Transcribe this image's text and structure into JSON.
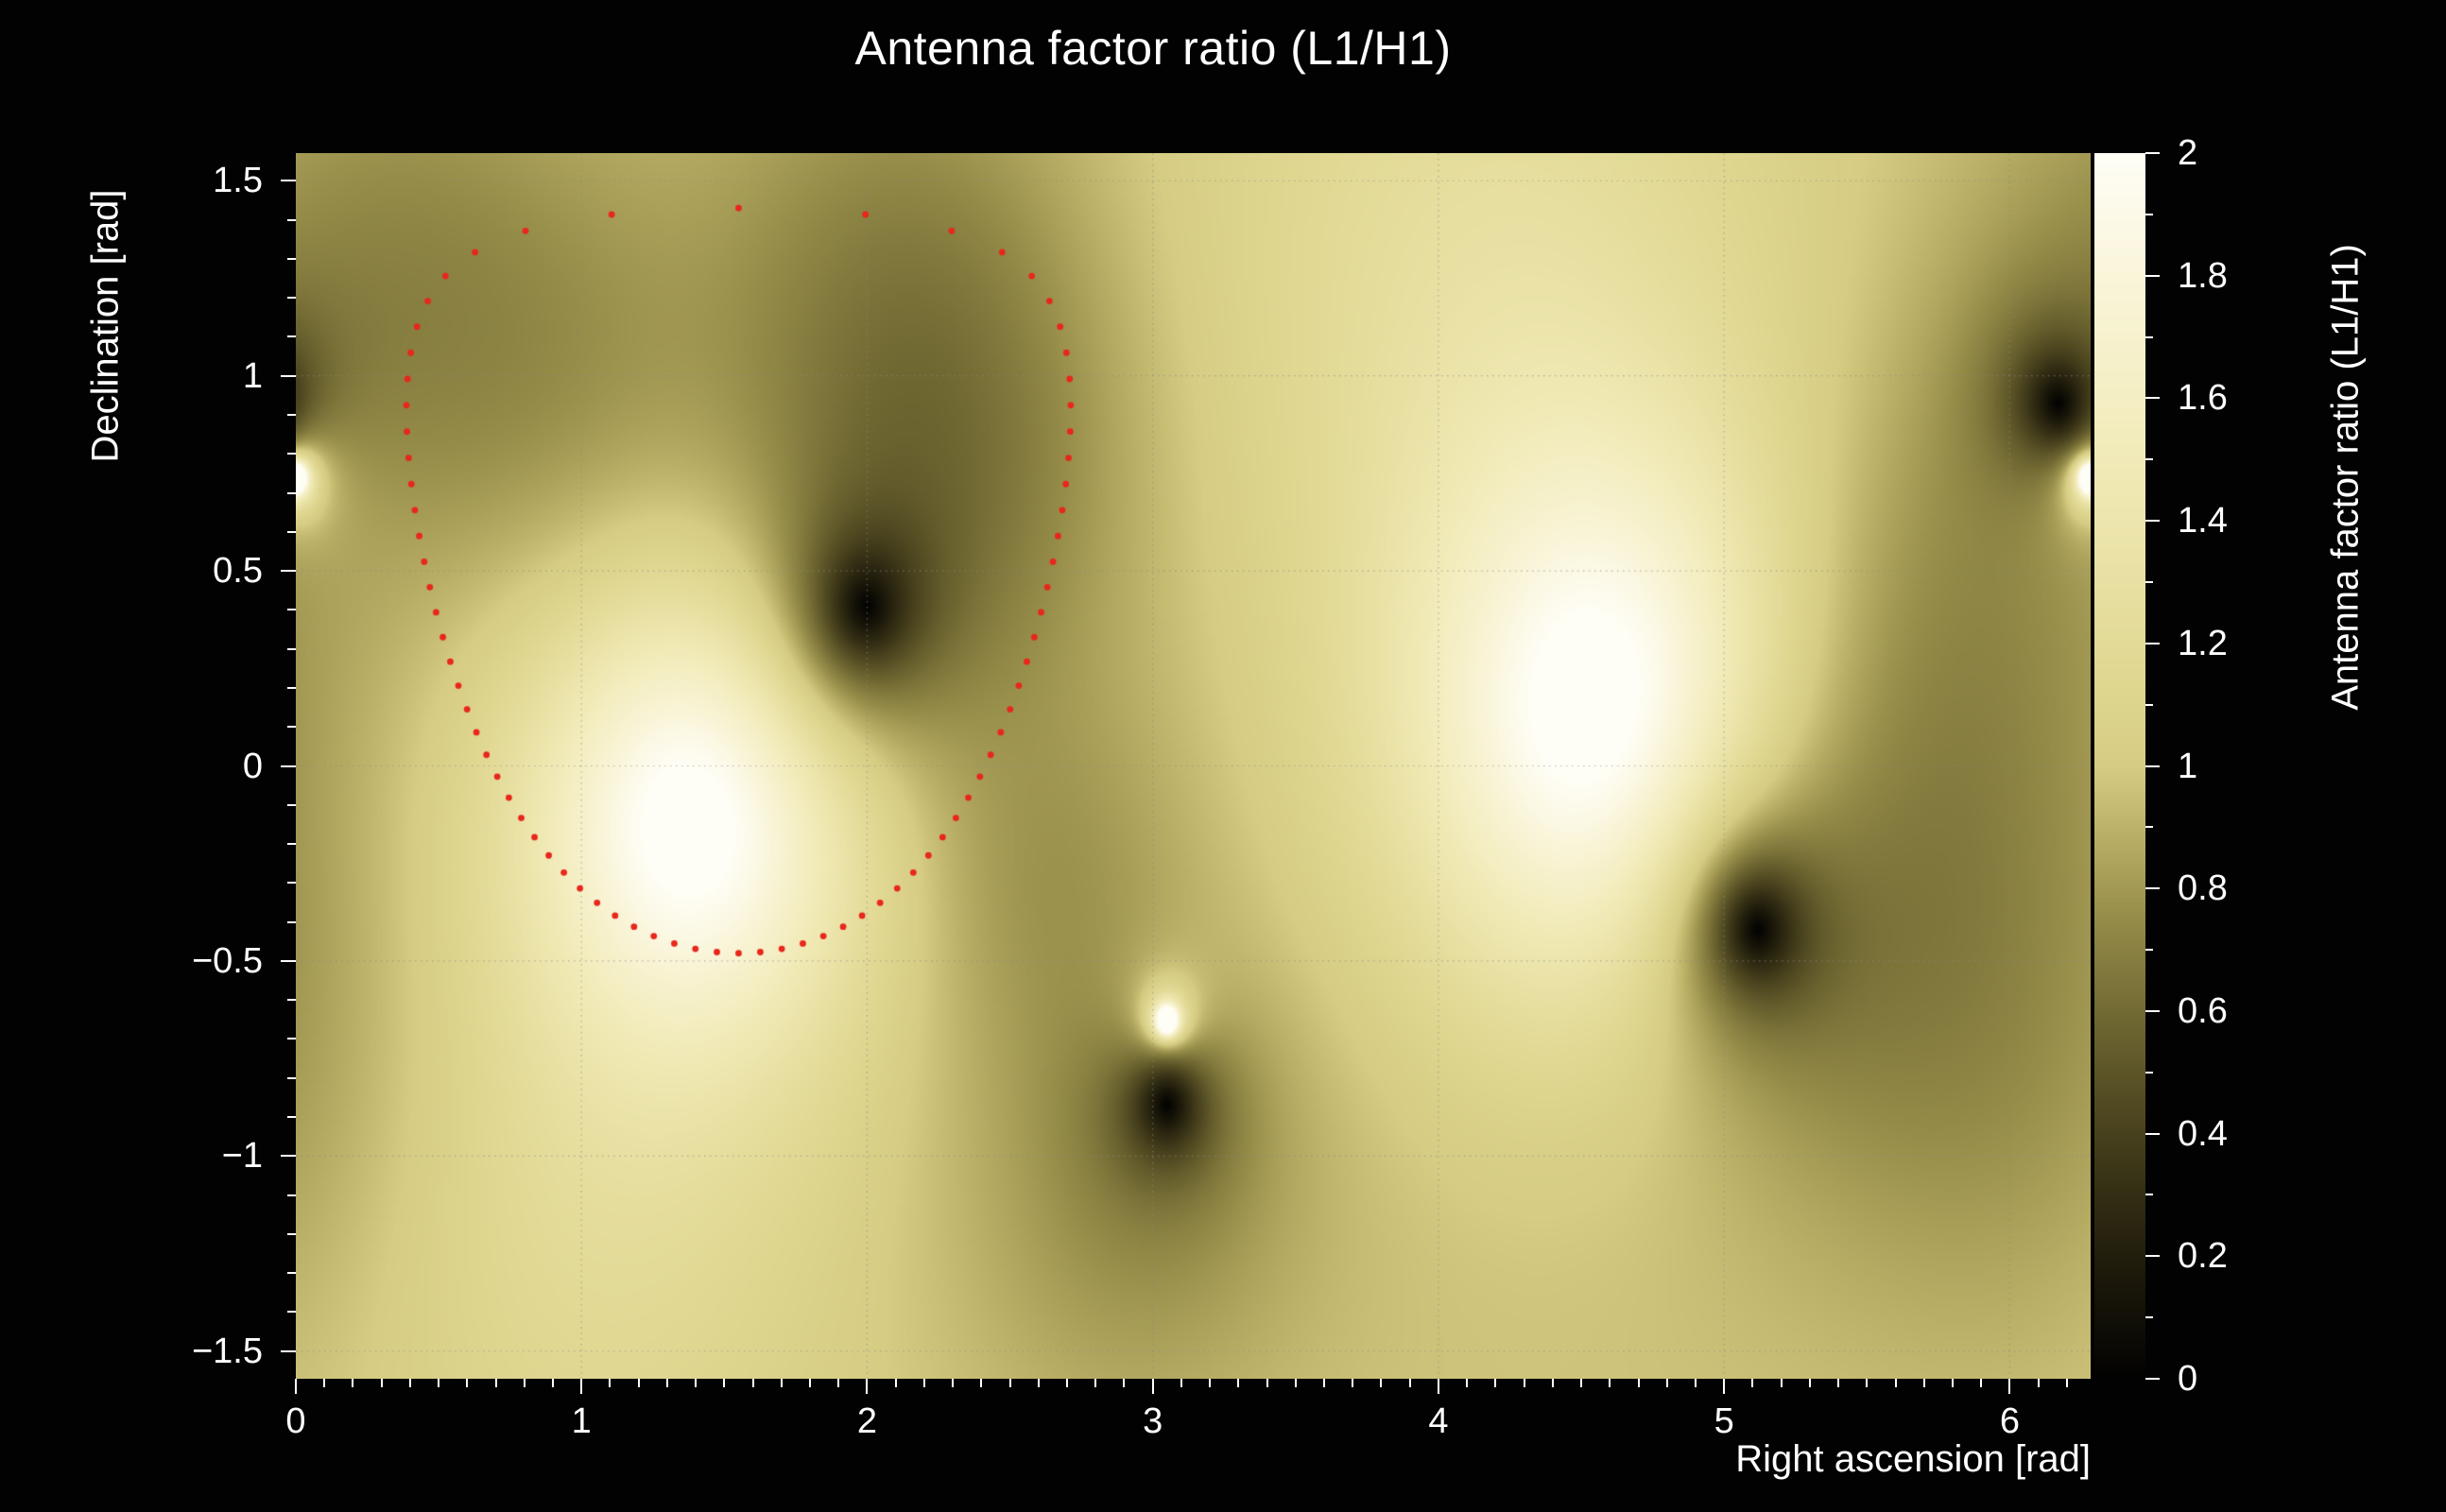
{
  "colors": {
    "background": "#020202",
    "text": "#ffffff",
    "grid": "#8a8a8a",
    "tick": "#ffffff",
    "contour_dots": "#e8271c"
  },
  "chart_data": {
    "type": "heatmap",
    "title": "Antenna factor ratio (L1/H1)",
    "x_axis": {
      "label": "Right ascension [rad]",
      "range": [
        0,
        6.2832
      ],
      "ticks": [
        {
          "v": 0,
          "label": "0"
        },
        {
          "v": 1,
          "label": "1"
        },
        {
          "v": 2,
          "label": "2"
        },
        {
          "v": 3,
          "label": "3"
        },
        {
          "v": 4,
          "label": "4"
        },
        {
          "v": 5,
          "label": "5"
        },
        {
          "v": 6,
          "label": "6"
        }
      ],
      "minor_step": 0.1
    },
    "y_axis": {
      "label": "Declination [rad]",
      "range": [
        -1.5708,
        1.5708
      ],
      "ticks": [
        {
          "v": 1.5,
          "label": "1.5"
        },
        {
          "v": 1.0,
          "label": "1"
        },
        {
          "v": 0.5,
          "label": "0.5"
        },
        {
          "v": 0.0,
          "label": "0"
        },
        {
          "v": -0.5,
          "label": "−0.5"
        },
        {
          "v": -1.0,
          "label": "−1"
        },
        {
          "v": -1.5,
          "label": "−1.5"
        }
      ],
      "minor_step": 0.1
    },
    "colorbar": {
      "label": "Antenna factor ratio (L1/H1)",
      "range": [
        0,
        2
      ],
      "ticks": [
        {
          "v": 2.0,
          "label": "2"
        },
        {
          "v": 1.8,
          "label": "1.8"
        },
        {
          "v": 1.6,
          "label": "1.6"
        },
        {
          "v": 1.4,
          "label": "1.4"
        },
        {
          "v": 1.2,
          "label": "1.2"
        },
        {
          "v": 1.0,
          "label": "1"
        },
        {
          "v": 0.8,
          "label": "0.8"
        },
        {
          "v": 0.6,
          "label": "0.6"
        },
        {
          "v": 0.4,
          "label": "0.4"
        },
        {
          "v": 0.2,
          "label": "0.2"
        },
        {
          "v": 0.0,
          "label": "0"
        }
      ],
      "minor_step": 0.1
    },
    "colormap_stops": [
      [
        0.0,
        "#020202"
      ],
      [
        0.15,
        "#191609"
      ],
      [
        0.3,
        "#332e14"
      ],
      [
        0.45,
        "#514a22"
      ],
      [
        0.6,
        "#726a33"
      ],
      [
        0.75,
        "#958c49"
      ],
      [
        0.9,
        "#bdb269"
      ],
      [
        1.0,
        "#d6cc83"
      ],
      [
        1.15,
        "#e0d792"
      ],
      [
        1.3,
        "#e8e0a2"
      ],
      [
        1.45,
        "#efe8b2"
      ],
      [
        1.6,
        "#f4eec3"
      ],
      [
        1.75,
        "#f8f3d3"
      ],
      [
        1.9,
        "#fcf9e8"
      ],
      [
        2.0,
        "#fffef6"
      ]
    ],
    "field_model": {
      "background_ratio": 1.0,
      "dark_exponent": 0.55,
      "bright_exponent": 0.45,
      "dark_nulls": [
        {
          "ra": 2.0,
          "dec": 0.41,
          "width": 0.3
        },
        {
          "ra": 3.05,
          "dec": -0.87,
          "width": 0.22
        },
        {
          "ra": 5.12,
          "dec": -0.42,
          "width": 0.3
        },
        {
          "ra": 6.17,
          "dec": 0.93,
          "width": 0.24
        }
      ],
      "bright_nulls": [
        {
          "ra": 3.05,
          "dec": -0.655,
          "width": 0.13
        },
        {
          "ra": 6.28,
          "dec": 0.74,
          "width": 0.16
        }
      ],
      "broad_terms": [
        {
          "ra": 1.42,
          "dec": -0.08,
          "amp": 0.8,
          "sigma": 0.48
        },
        {
          "ra": 4.62,
          "dec": 0.05,
          "amp": 0.8,
          "sigma": 0.55
        },
        {
          "ra": 4.2,
          "dec": 1.25,
          "amp": 0.26,
          "sigma": 0.75
        },
        {
          "ra": 1.05,
          "dec": -1.15,
          "amp": 0.2,
          "sigma": 0.6
        },
        {
          "ra": 2.25,
          "dec": 0.8,
          "amp": -0.3,
          "sigma": 0.45
        },
        {
          "ra": 2.1,
          "dec": 1.3,
          "amp": -0.2,
          "sigma": 0.45
        },
        {
          "ra": 0.9,
          "dec": 0.95,
          "amp": -0.2,
          "sigma": 0.45
        },
        {
          "ra": 0.3,
          "dec": 1.3,
          "amp": -0.2,
          "sigma": 0.45
        },
        {
          "ra": 5.55,
          "dec": -0.3,
          "amp": -0.28,
          "sigma": 0.5
        },
        {
          "ra": 5.8,
          "dec": 0.4,
          "amp": -0.2,
          "sigma": 0.45
        },
        {
          "ra": 2.62,
          "dec": -0.3,
          "amp": -0.18,
          "sigma": 0.35
        },
        {
          "ra": 2.9,
          "dec": -1.15,
          "amp": -0.16,
          "sigma": 0.4
        },
        {
          "ra": 6.1,
          "dec": -0.85,
          "amp": -0.15,
          "sigma": 0.5
        }
      ]
    },
    "contour": {
      "style": "dotted",
      "color": "#e8271c",
      "center_ra": 1.55,
      "center_dec": 0.475,
      "radius": 0.955,
      "n_dots": 76,
      "dot_radius_px": 3.4
    },
    "grid": {
      "shown": true,
      "style": "dotted",
      "alpha": 0.6
    }
  }
}
